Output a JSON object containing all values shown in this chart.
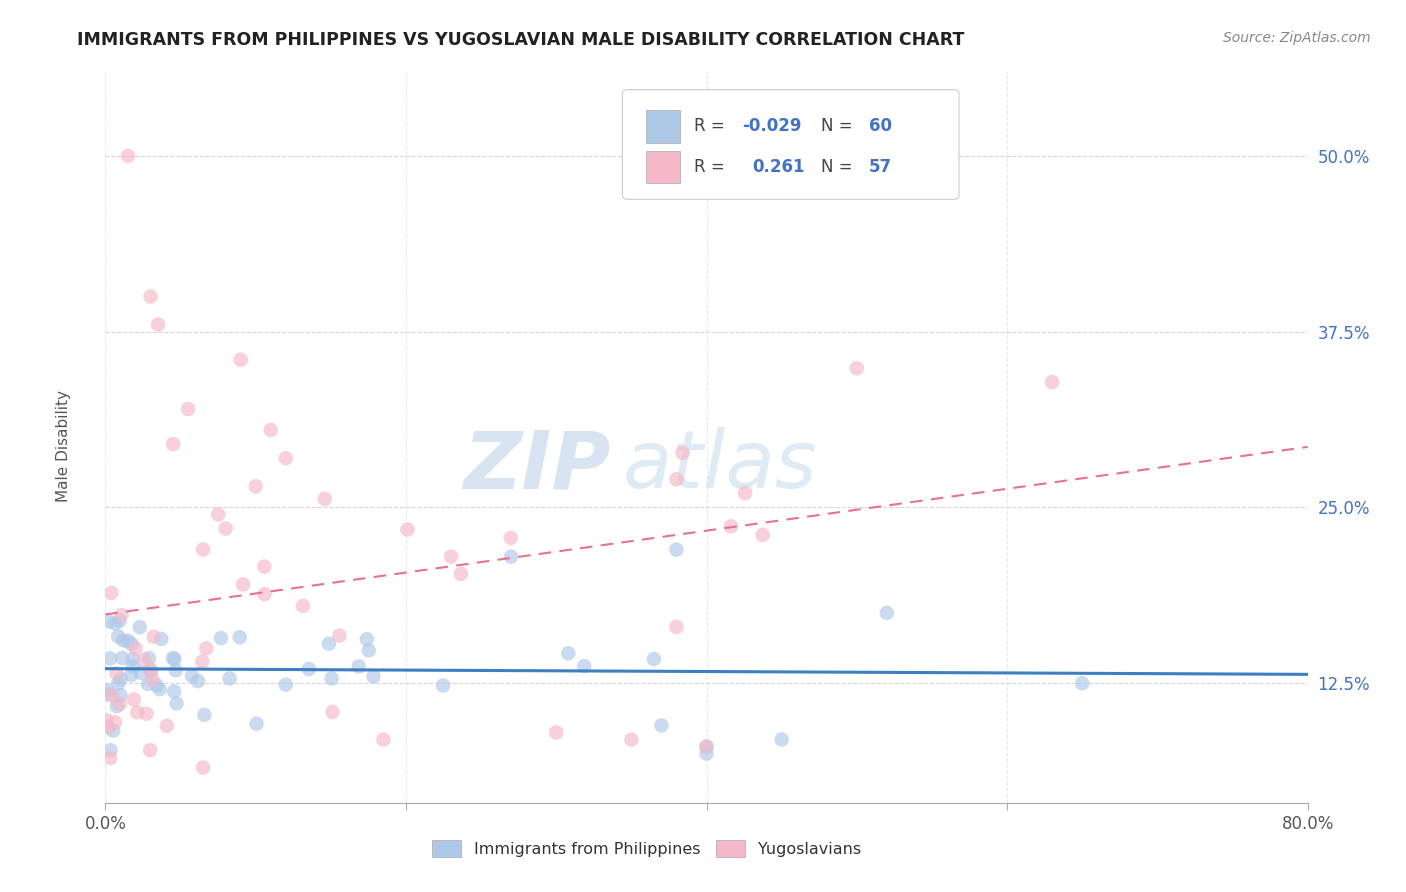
{
  "title": "IMMIGRANTS FROM PHILIPPINES VS YUGOSLAVIAN MALE DISABILITY CORRELATION CHART",
  "source": "Source: ZipAtlas.com",
  "ylabel": "Male Disability",
  "xlim": [
    0.0,
    0.8
  ],
  "ylim": [
    0.04,
    0.56
  ],
  "x_ticks": [
    0.0,
    0.2,
    0.4,
    0.6,
    0.8
  ],
  "x_tick_labels": [
    "0.0%",
    "",
    "",
    "",
    "80.0%"
  ],
  "y_ticks": [
    0.125,
    0.25,
    0.375,
    0.5
  ],
  "y_tick_labels": [
    "12.5%",
    "25.0%",
    "37.5%",
    "50.0%"
  ],
  "color_blue": "#aec8e8",
  "color_pink": "#f4b8c8",
  "line_blue": "#3d7fc1",
  "line_pink": "#e8728a",
  "line_blue_text": "#4472c4",
  "watermark_zip": "ZIP",
  "watermark_atlas": "atlas",
  "legend_r1_label": "R = ",
  "legend_r1_val": "-0.029",
  "legend_n1_label": "N = ",
  "legend_n1_val": "60",
  "legend_r2_label": "R =  ",
  "legend_r2_val": "0.261",
  "legend_n2_label": "N = ",
  "legend_n2_val": "57",
  "phil_seed": 42,
  "yugo_seed": 99
}
